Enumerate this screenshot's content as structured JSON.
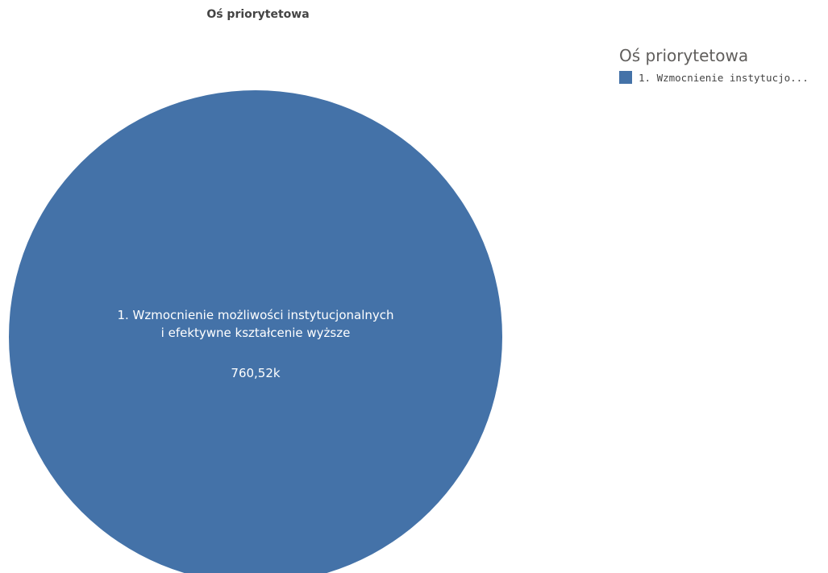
{
  "colors": {
    "slice": "#4472A8",
    "text_dark": "#444444",
    "legend_title": "#605E5C",
    "label_on_slice": "#FFFFFF"
  },
  "chart_data": {
    "type": "pie",
    "title": "Oś priorytetowa",
    "legend_title": "Oś priorytetowa",
    "legend_placement": "top-right",
    "slices": [
      {
        "name": "1. Wzmocnienie możliwości instytucjonalnych i efektywne kształcenie wyższe",
        "label_lines": [
          "1. Wzmocnienie możliwości instytucjonalnych",
          "i efektywne kształcenie wyższe"
        ],
        "value": 760520,
        "value_label": "760,52k",
        "legend_label": "1. Wzmocnienie instytucjo...",
        "color": "#4472A8"
      }
    ]
  }
}
